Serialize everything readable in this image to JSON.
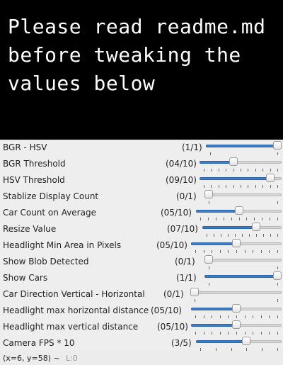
{
  "banner": {
    "lines": [
      "Please read readme.md",
      "before tweaking the",
      "values below"
    ]
  },
  "trackbars": [
    {
      "label": "BGR - HSV",
      "count": "(1/1)",
      "value": 1,
      "max": 1
    },
    {
      "label": "BGR Threshold",
      "count": "(04/10)",
      "value": 4,
      "max": 10
    },
    {
      "label": "HSV Threshold",
      "count": "(09/10)",
      "value": 9,
      "max": 10
    },
    {
      "label": "Stablize Display Count",
      "count": "(0/1)",
      "value": 0,
      "max": 1
    },
    {
      "label": "Car Count on Average",
      "count": "(05/10)",
      "value": 5,
      "max": 10
    },
    {
      "label": "Resize Value",
      "count": "(07/10)",
      "value": 7,
      "max": 10
    },
    {
      "label": "Headlight Min Area in Pixels",
      "count": "(05/10)",
      "value": 5,
      "max": 10
    },
    {
      "label": "Show Blob Detected",
      "count": "(0/1)",
      "value": 0,
      "max": 1
    },
    {
      "label": "Show Cars",
      "count": "(1/1)",
      "value": 1,
      "max": 1
    },
    {
      "label": "Car Direction Vertical - Horizontal",
      "count": "(0/1)",
      "value": 0,
      "max": 1
    },
    {
      "label": "Headlight max horizontal distance",
      "count": "(05/10)",
      "value": 5,
      "max": 10
    },
    {
      "label": "Headlight max vertical distance",
      "count": "(05/10)",
      "value": 5,
      "max": 10
    },
    {
      "label": "Camera FPS * 10",
      "count": "(3/5)",
      "value": 3,
      "max": 5
    }
  ],
  "status": {
    "coords": "(x=6, y=58) ~",
    "channel": "L:0"
  },
  "colors": {
    "accent": "#3d7ec9",
    "banner_bg": "#000000",
    "banner_text": "#ffffff"
  }
}
